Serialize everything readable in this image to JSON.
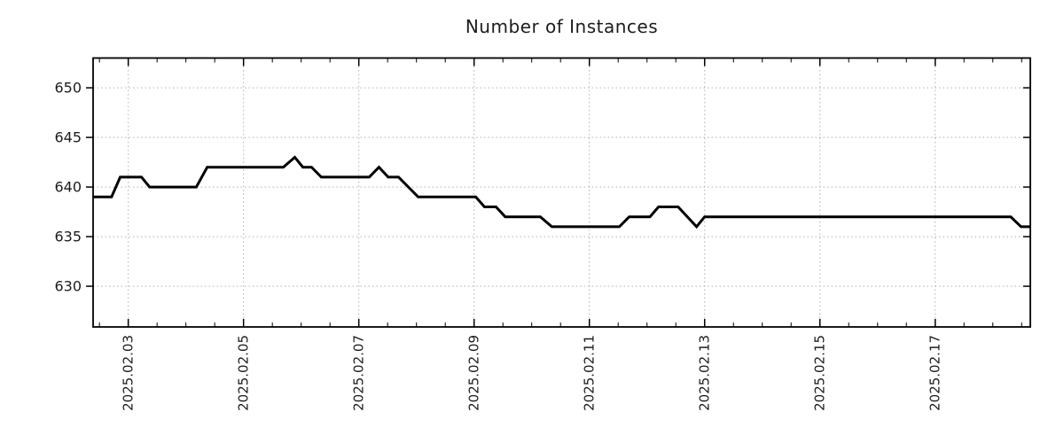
{
  "page": {
    "background": "#ffffff"
  },
  "chart_data": {
    "type": "line",
    "title": "Number of Instances",
    "xlabel": "",
    "ylabel": "",
    "legend": "none",
    "grid": {
      "show": true,
      "color": "#b0b0b0",
      "style": "dotted"
    },
    "frame_color": "#000000",
    "x_axis": {
      "unit": "day-of-February-2025",
      "lim": [
        2.39,
        18.65
      ],
      "tick_values": [
        3,
        5,
        7,
        9,
        11,
        13,
        15,
        17
      ],
      "tick_labels": [
        "2025.02.03",
        "2025.02.05",
        "2025.02.07",
        "2025.02.09",
        "2025.02.11",
        "2025.02.13",
        "2025.02.15",
        "2025.02.17"
      ],
      "minor_tick_step": 0.5,
      "label_rotation_deg": -90
    },
    "y_axis": {
      "lim": [
        625.9,
        653.0
      ],
      "tick_values": [
        630,
        635,
        640,
        645,
        650
      ],
      "tick_labels": [
        "630",
        "635",
        "640",
        "645",
        "650"
      ]
    },
    "series": [
      {
        "name": "instances",
        "color": "#000000",
        "width": 3,
        "points": [
          [
            2.39,
            639
          ],
          [
            2.71,
            639
          ],
          [
            2.86,
            641
          ],
          [
            3.23,
            641
          ],
          [
            3.37,
            640
          ],
          [
            4.18,
            640
          ],
          [
            4.37,
            642
          ],
          [
            5.69,
            642
          ],
          [
            5.89,
            643
          ],
          [
            6.03,
            642
          ],
          [
            6.18,
            642
          ],
          [
            6.35,
            641
          ],
          [
            7.18,
            641
          ],
          [
            7.35,
            642
          ],
          [
            7.51,
            641
          ],
          [
            7.69,
            641
          ],
          [
            8.03,
            639
          ],
          [
            9.03,
            639
          ],
          [
            9.18,
            638
          ],
          [
            9.38,
            638
          ],
          [
            9.54,
            637
          ],
          [
            10.15,
            637
          ],
          [
            10.35,
            636
          ],
          [
            11.52,
            636
          ],
          [
            11.69,
            637
          ],
          [
            12.05,
            637
          ],
          [
            12.2,
            638
          ],
          [
            12.54,
            638
          ],
          [
            12.86,
            636
          ],
          [
            13.0,
            637
          ],
          [
            18.31,
            637
          ],
          [
            18.49,
            636
          ],
          [
            18.65,
            636
          ]
        ]
      }
    ]
  }
}
